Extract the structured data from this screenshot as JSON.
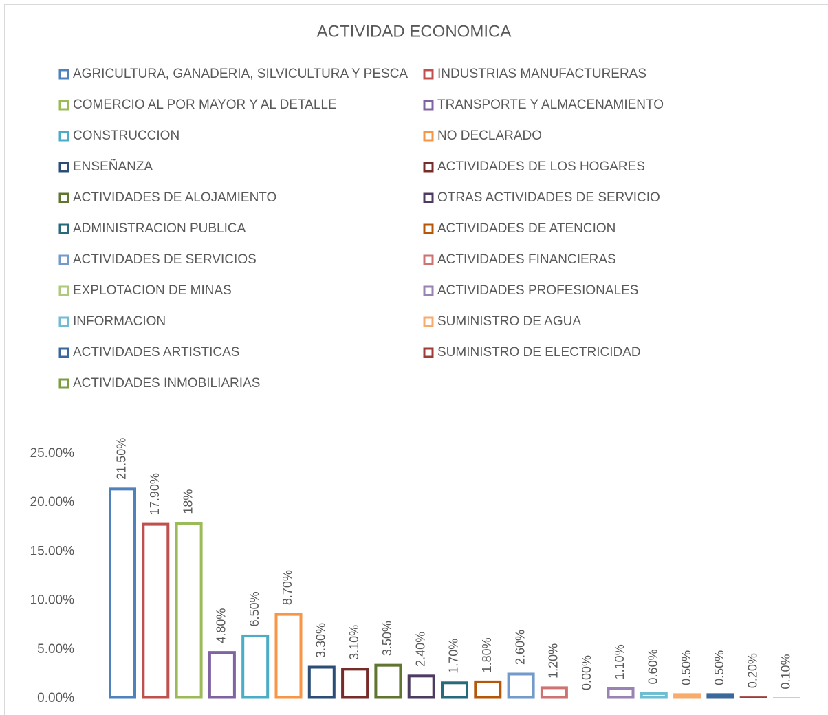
{
  "chart_data": {
    "type": "bar",
    "title": "ACTIVIDAD ECONOMICA",
    "ylim": [
      0,
      25
    ],
    "grid": false,
    "yticks": [
      {
        "value": 0,
        "label": "0.00%"
      },
      {
        "value": 5,
        "label": "5.00%"
      },
      {
        "value": 10,
        "label": "10.00%"
      },
      {
        "value": 15,
        "label": "15.00%"
      },
      {
        "value": 20,
        "label": "20.00%"
      },
      {
        "value": 25,
        "label": "25.00%"
      }
    ],
    "legend": "top",
    "series": [
      {
        "name": "AGRICULTURA, GANADERIA, SILVICULTURA Y PESCA",
        "color": "#4F81BD",
        "values": [
          21.5
        ],
        "value_labels": [
          "21.50%"
        ]
      },
      {
        "name": "INDUSTRIAS MANUFACTURERAS",
        "color": "#C0504D",
        "values": [
          17.9
        ],
        "value_labels": [
          "17.90%"
        ]
      },
      {
        "name": "COMERCIO AL POR MAYOR Y AL DETALLE",
        "color": "#9BBB59",
        "values": [
          18
        ],
        "value_labels": [
          "18%"
        ]
      },
      {
        "name": "TRANSPORTE Y ALMACENAMIENTO",
        "color": "#8064A2",
        "values": [
          4.8
        ],
        "value_labels": [
          "4.80%"
        ]
      },
      {
        "name": "CONSTRUCCION",
        "color": "#4BACC6",
        "values": [
          6.5
        ],
        "value_labels": [
          "6.50%"
        ]
      },
      {
        "name": "NO DECLARADO",
        "color": "#F79646",
        "values": [
          8.7
        ],
        "value_labels": [
          "8.70%"
        ]
      },
      {
        "name": "ENSEÑANZA",
        "color": "#2C4D75",
        "values": [
          3.3
        ],
        "value_labels": [
          "3.30%"
        ]
      },
      {
        "name": "ACTIVIDADES DE LOS HOGARES",
        "color": "#772C2A",
        "values": [
          3.1
        ],
        "value_labels": [
          "3.10%"
        ]
      },
      {
        "name": "ACTIVIDADES DE ALOJAMIENTO",
        "color": "#5F7530",
        "values": [
          3.5
        ],
        "value_labels": [
          "3.50%"
        ]
      },
      {
        "name": "OTRAS ACTIVIDADES DE SERVICIO",
        "color": "#4D3B62",
        "values": [
          2.4
        ],
        "value_labels": [
          "2.40%"
        ]
      },
      {
        "name": "ADMINISTRACION PUBLICA",
        "color": "#276A7C",
        "values": [
          1.7
        ],
        "value_labels": [
          "1.70%"
        ]
      },
      {
        "name": "ACTIVIDADES DE ATENCION",
        "color": "#B65708",
        "values": [
          1.8
        ],
        "value_labels": [
          "1.80%"
        ]
      },
      {
        "name": "ACTIVIDADES DE SERVICIOS",
        "color": "#729ACA",
        "values": [
          2.6
        ],
        "value_labels": [
          "2.60%"
        ]
      },
      {
        "name": "ACTIVIDADES FINANCIERAS",
        "color": "#CD7371",
        "values": [
          1.2
        ],
        "value_labels": [
          "1.20%"
        ]
      },
      {
        "name": "EXPLOTACION DE MINAS",
        "color": "#AFC97A",
        "values": [
          0
        ],
        "value_labels": [
          "0.00%"
        ]
      },
      {
        "name": "ACTIVIDADES PROFESIONALES",
        "color": "#9983B5",
        "values": [
          1.1
        ],
        "value_labels": [
          "1.10%"
        ]
      },
      {
        "name": "INFORMACION",
        "color": "#6FBDD1",
        "values": [
          0.6
        ],
        "value_labels": [
          "0.60%"
        ]
      },
      {
        "name": "SUMINISTRO DE AGUA",
        "color": "#F9AB6B",
        "values": [
          0.5
        ],
        "value_labels": [
          "0.50%"
        ]
      },
      {
        "name": "ACTIVIDADES ARTISTICAS",
        "color": "#3A679C",
        "values": [
          0.5
        ],
        "value_labels": [
          "0.50%"
        ]
      },
      {
        "name": "SUMINISTRO DE ELECTRICIDAD",
        "color": "#9F3B38",
        "values": [
          0.2
        ],
        "value_labels": [
          "0.20%"
        ]
      },
      {
        "name": "ACTIVIDADES INMOBILIARIAS",
        "color": "#7E9C40",
        "values": [
          0.1
        ],
        "value_labels": [
          "0.10%"
        ]
      }
    ]
  }
}
